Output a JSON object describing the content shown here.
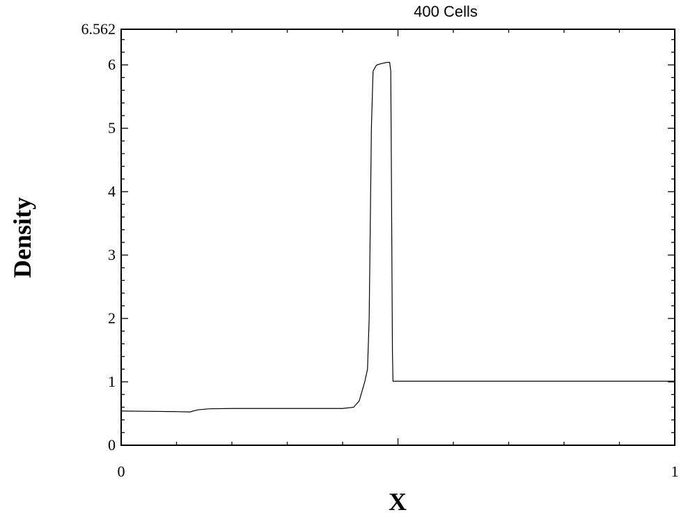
{
  "chart_data": {
    "type": "line",
    "title": "400  Cells",
    "xlabel": "X",
    "ylabel": "Density",
    "xlim": [
      0,
      1
    ],
    "ylim": [
      0,
      6.562
    ],
    "x_tick_labels": [
      {
        "value": 0,
        "label": "0"
      },
      {
        "value": 1,
        "label": "1"
      }
    ],
    "y_tick_labels": [
      {
        "value": 0,
        "label": "0"
      },
      {
        "value": 1,
        "label": "1"
      },
      {
        "value": 2,
        "label": "2"
      },
      {
        "value": 3,
        "label": "3"
      },
      {
        "value": 4,
        "label": "4"
      },
      {
        "value": 5,
        "label": "5"
      },
      {
        "value": 6,
        "label": "6"
      },
      {
        "value": 6.562,
        "label": "6.562"
      }
    ],
    "grid": false,
    "series": [
      {
        "color": "#000000",
        "x": [
          0,
          0.05,
          0.1,
          0.125,
          0.13,
          0.14,
          0.16,
          0.2,
          0.3,
          0.4,
          0.42,
          0.43,
          0.435,
          0.44,
          0.445,
          0.448,
          0.45,
          0.452,
          0.455,
          0.458,
          0.46,
          0.462,
          0.47,
          0.48,
          0.485,
          0.487,
          0.488,
          0.489,
          0.49,
          0.491,
          0.492,
          0.495,
          0.5,
          0.6,
          0.8,
          1.0
        ],
        "y": [
          0.54,
          0.535,
          0.53,
          0.525,
          0.54,
          0.56,
          0.575,
          0.58,
          0.58,
          0.58,
          0.6,
          0.7,
          0.85,
          1.0,
          1.2,
          2.0,
          3.5,
          5.0,
          5.9,
          5.95,
          5.98,
          6.0,
          6.02,
          6.04,
          6.04,
          5.9,
          4.5,
          3.0,
          1.5,
          1.01,
          1.01,
          1.01,
          1.01,
          1.01,
          1.01,
          1.01
        ]
      }
    ]
  }
}
